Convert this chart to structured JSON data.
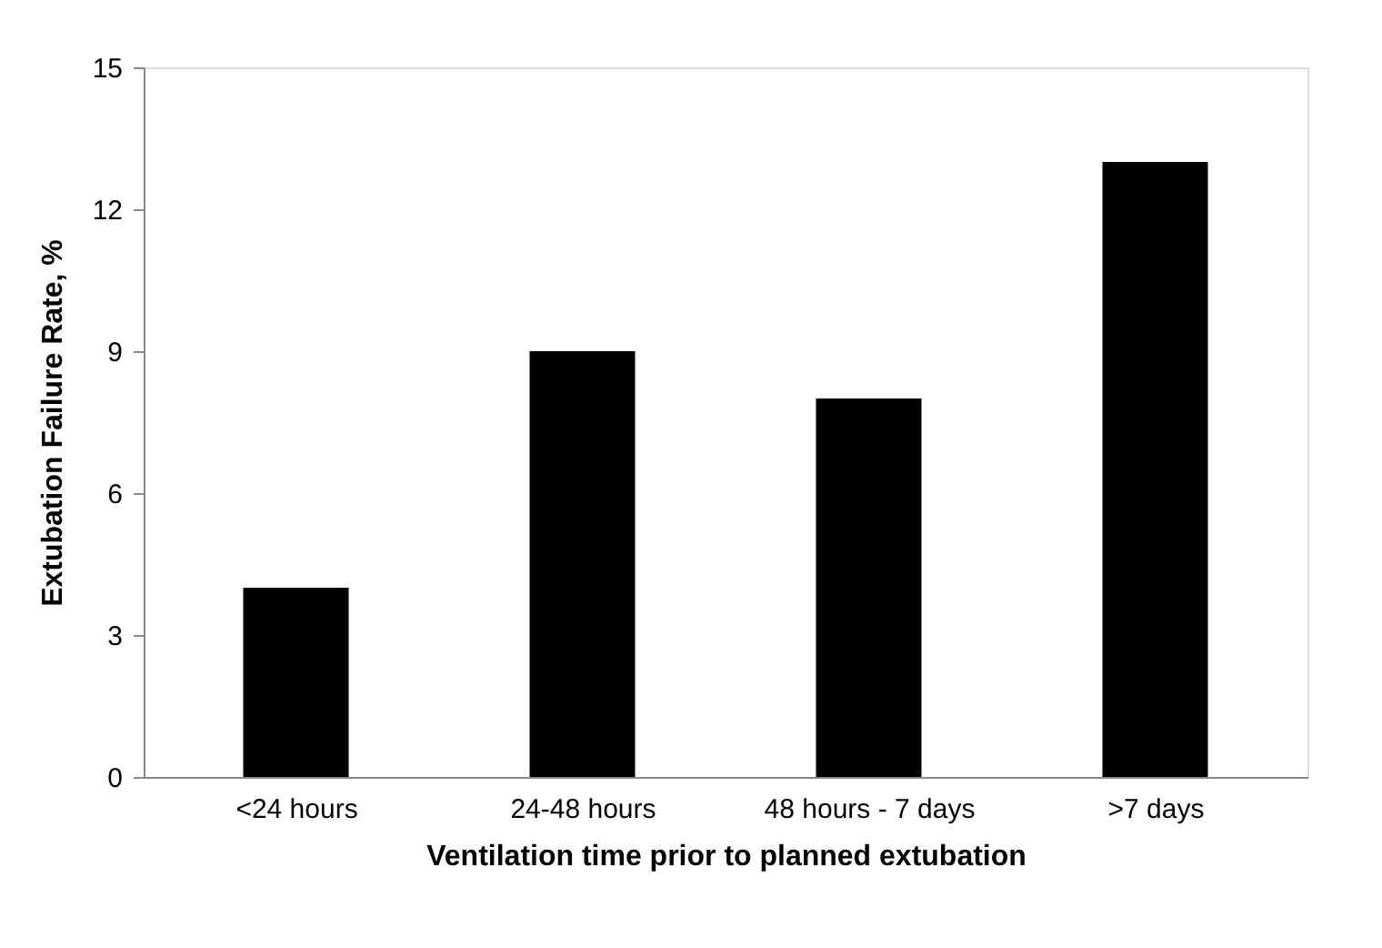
{
  "chart_data": {
    "type": "bar",
    "xlabel": "Ventilation time prior to planned extubation",
    "ylabel": "Extubation Failure Rate, %",
    "categories": [
      "<24 hours",
      "24-48 hours",
      "48 hours - 7 days",
      ">7 days"
    ],
    "values": [
      4,
      9,
      8,
      13
    ],
    "color": "#000000",
    "ylim": [
      0,
      15
    ],
    "yticks": [
      0,
      3,
      6,
      9,
      12,
      15
    ],
    "grid": false
  }
}
